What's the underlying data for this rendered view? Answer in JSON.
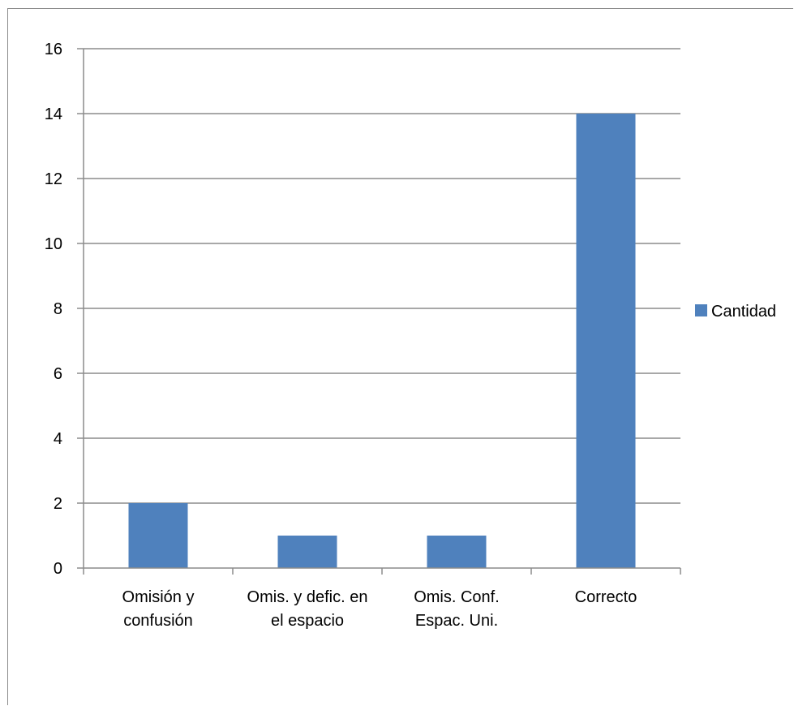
{
  "chart_data": {
    "type": "bar",
    "title": "",
    "xlabel": "",
    "ylabel": "",
    "categories": [
      [
        "Omisión y",
        "confusión"
      ],
      [
        "Omis. y defic. en",
        "el espacio"
      ],
      [
        "Omis. Conf.",
        "Espac. Uni."
      ],
      [
        "Correcto"
      ]
    ],
    "series": [
      {
        "name": "Cantidad",
        "values": [
          2,
          1,
          1,
          14
        ],
        "color": "#4f81bd"
      }
    ],
    "ylim": [
      0,
      16
    ],
    "yticks": [
      0,
      2,
      4,
      6,
      8,
      10,
      12,
      14,
      16
    ],
    "grid": true,
    "legend": "right"
  }
}
